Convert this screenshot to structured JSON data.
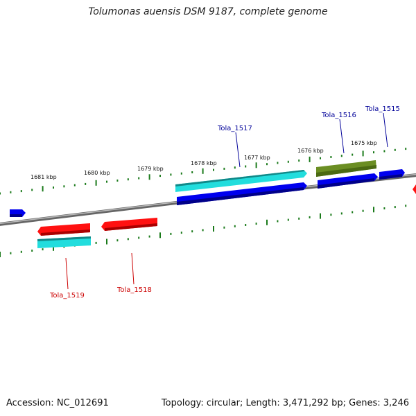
{
  "title": "Tolumonas auensis DSM 9187, complete genome",
  "footer": {
    "accession": "Accession: NC_012691",
    "summary": "Topology: circular; Length: 3,471,292 bp; Genes: 3,246"
  },
  "colors": {
    "backbone": "#777777",
    "tick": "#1a7a1a",
    "red": "#ff1111",
    "blue": "#0000ee",
    "cyan": "#22dddd",
    "olive": "#6b8e23",
    "label_top": "#000099",
    "label_bottom": "#cc0000"
  },
  "ticks": [
    {
      "label": "1681 kbp"
    },
    {
      "label": "1680 kbp"
    },
    {
      "label": "1679 kbp"
    },
    {
      "label": "1678 kbp"
    },
    {
      "label": "1677 kbp"
    },
    {
      "label": "1676 kbp"
    },
    {
      "label": "1675 kbp"
    }
  ],
  "gene_labels": [
    {
      "name": "Tola_1517",
      "strand": "top"
    },
    {
      "name": "Tola_1516",
      "strand": "top"
    },
    {
      "name": "Tola_1515",
      "strand": "top"
    },
    {
      "name": "Tola_1519",
      "strand": "bottom"
    },
    {
      "name": "Tola_1518",
      "strand": "bottom"
    }
  ]
}
